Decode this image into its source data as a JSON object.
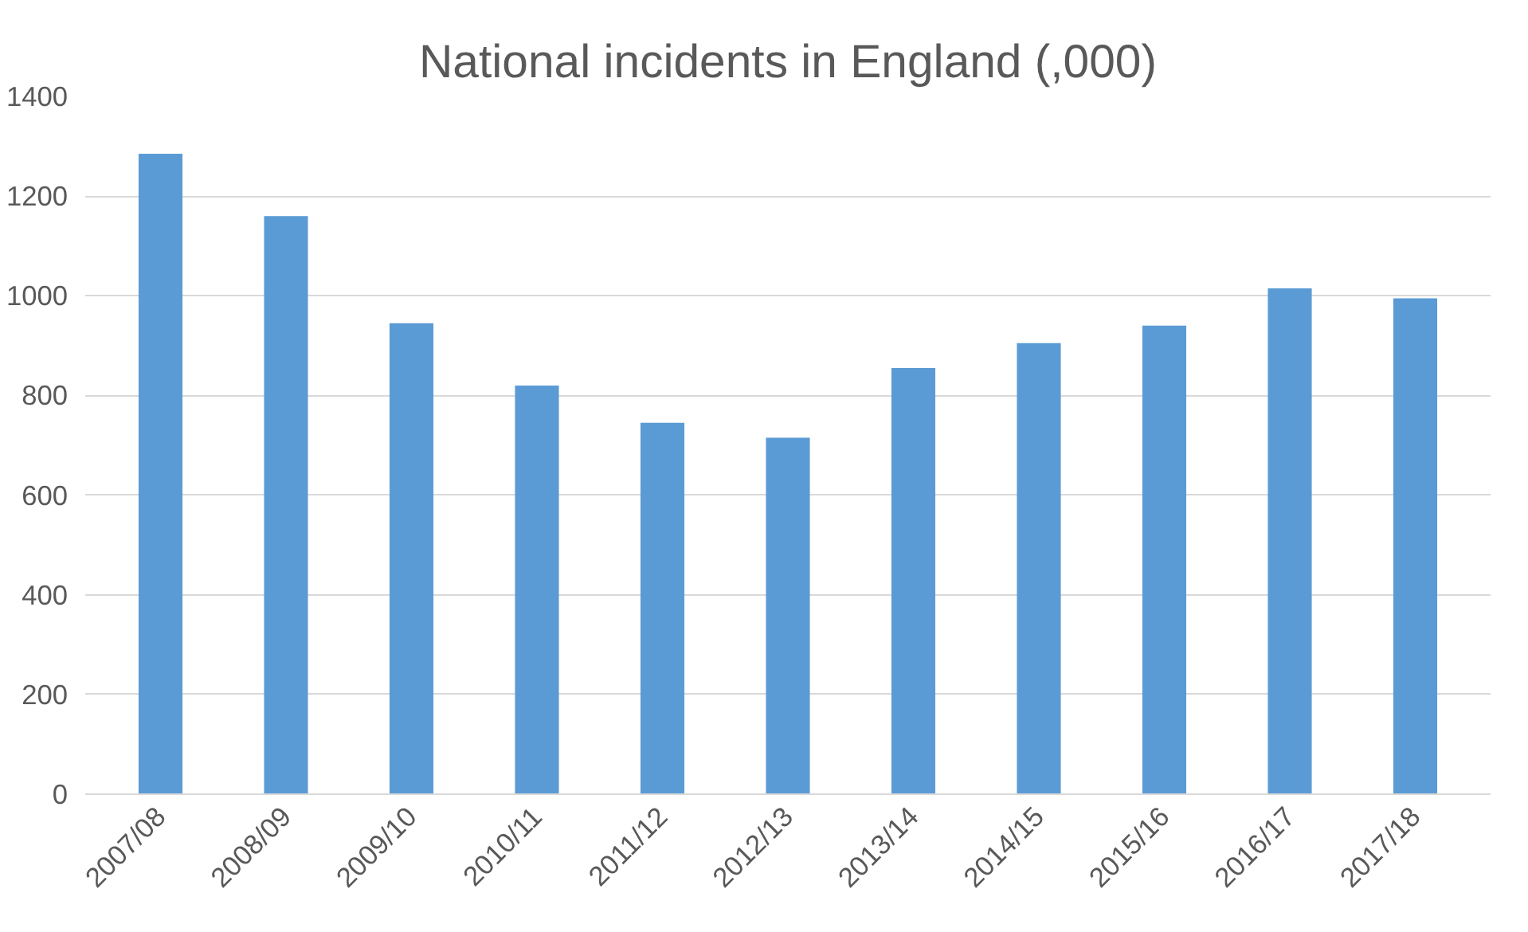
{
  "chart_data": {
    "type": "bar",
    "title": "National incidents in England (,000)",
    "categories": [
      "2007/08",
      "2008/09",
      "2009/10",
      "2010/11",
      "2011/12",
      "2012/13",
      "2013/14",
      "2014/15",
      "2015/16",
      "2016/17",
      "2017/18"
    ],
    "values": [
      1285,
      1160,
      945,
      820,
      745,
      715,
      855,
      905,
      940,
      1015,
      995
    ],
    "color": "#5b9bd5",
    "ylim": [
      0,
      1400
    ],
    "yticks": [
      0,
      200,
      400,
      600,
      800,
      1000,
      1200,
      1400
    ],
    "grid": "y"
  }
}
